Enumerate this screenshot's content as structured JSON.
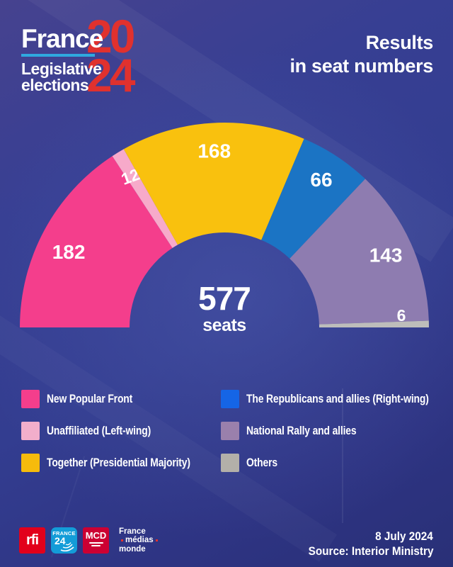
{
  "header": {
    "brand": {
      "name": "France",
      "year_top": "20",
      "year_bottom": "24",
      "subtitle_line1": "Legislative",
      "subtitle_line2": "elections",
      "underline_color": "#2FA9DF",
      "year_color": "#E0312E"
    },
    "title_line1": "Results",
    "title_line2": "in seat numbers"
  },
  "chart_data": {
    "type": "pie",
    "variant": "semicircle-donut",
    "total": 577,
    "center_label": "577",
    "center_sublabel": "seats",
    "segments": [
      {
        "name": "New Popular Front",
        "value": 182,
        "color": "#F43E8C",
        "legend_color": "#F43E8C",
        "label_dy": 12
      },
      {
        "name": "Unaffiliated (Left-wing)",
        "value": 12,
        "color": "#F7AACA",
        "legend_color": "#F2AECB",
        "label_tilt": -20
      },
      {
        "name": "Together (Presidential Majority)",
        "value": 168,
        "color": "#F9C10E",
        "legend_color": "#F6BB0C"
      },
      {
        "name": "The Republicans and allies (Right-wing)",
        "value": 66,
        "color": "#1B74C4",
        "legend_color": "#1565E6"
      },
      {
        "name": "National Rally and allies",
        "value": 143,
        "color": "#8E7CB0",
        "legend_color": "#9A80AC"
      },
      {
        "name": "Others",
        "value": 6,
        "color": "#BDBDBB",
        "legend_color": "#B3B0A9",
        "label_dy": -13
      }
    ],
    "layout": {
      "center": [
        317,
        462
      ],
      "outer_radius": 289,
      "inner_radius": 134,
      "start_angle": 180,
      "end_angle": 0,
      "label_radius": 250,
      "big_label_size": 28,
      "small_label_size": 23
    }
  },
  "footer": {
    "logos": {
      "rfi": {
        "label": "rfi",
        "bg": "#E2001B"
      },
      "france24": {
        "label_top": "FRANCE",
        "label_num": "24",
        "bg": "#139CD8"
      },
      "mcd": {
        "label": "MCD",
        "bg": "#CC0033"
      },
      "fmm": {
        "line1": "France",
        "line2": "médias",
        "line3": "monde"
      }
    },
    "date": "8 July 2024",
    "source": "Source: Interior Ministry"
  }
}
